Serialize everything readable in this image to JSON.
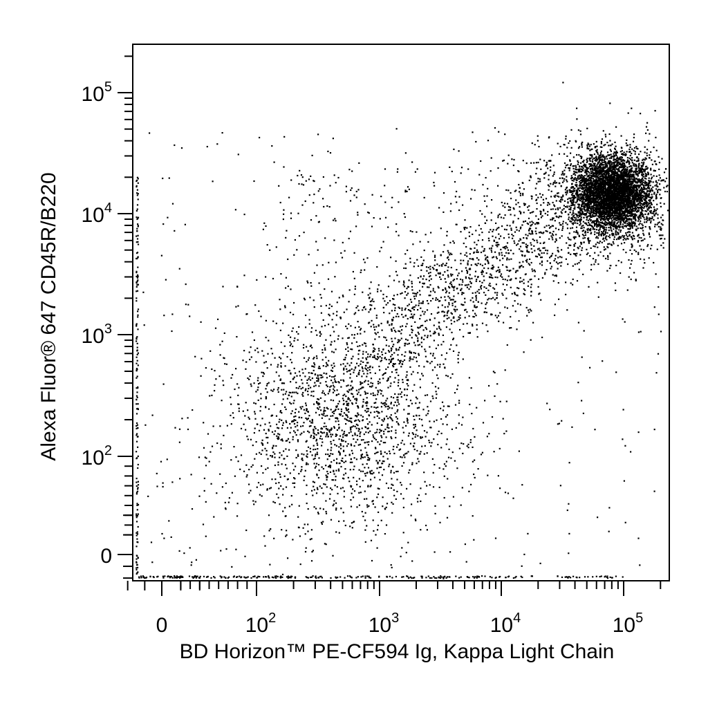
{
  "chart_data": {
    "type": "scatter",
    "title": "",
    "xlabel": "BD Horizon™ PE-CF594 Ig, Kappa Light Chain",
    "ylabel": "Alexa Fluor® 647 CD45R/B220",
    "xscale": "biexponential",
    "yscale": "biexponential",
    "x_ticks": [
      {
        "value": 0,
        "base": "0",
        "exp": ""
      },
      {
        "value": 100,
        "base": "10",
        "exp": "2"
      },
      {
        "value": 1000,
        "base": "10",
        "exp": "3"
      },
      {
        "value": 10000,
        "base": "10",
        "exp": "4"
      },
      {
        "value": 100000,
        "base": "10",
        "exp": "5"
      }
    ],
    "y_ticks": [
      {
        "value": 0,
        "base": "0",
        "exp": ""
      },
      {
        "value": 100,
        "base": "10",
        "exp": "2"
      },
      {
        "value": 1000,
        "base": "10",
        "exp": "3"
      },
      {
        "value": 10000,
        "base": "10",
        "exp": "4"
      },
      {
        "value": 100000,
        "base": "10",
        "exp": "5"
      }
    ],
    "xlim": [
      -100,
      250000
    ],
    "ylim": [
      -60,
      250000
    ],
    "grid": false,
    "legend": "none",
    "marker_color": "#000000",
    "populations": [
      {
        "description": "dense cluster",
        "x_center": 80000,
        "y_center": 15000,
        "relative_density": "very high"
      },
      {
        "description": "diffuse cloud",
        "x_center": 500,
        "y_center": 300,
        "relative_density": "medium"
      },
      {
        "description": "diagonal bridge",
        "x_from": 1000,
        "y_from": 1000,
        "x_to": 40000,
        "y_to": 10000,
        "relative_density": "low"
      }
    ]
  }
}
